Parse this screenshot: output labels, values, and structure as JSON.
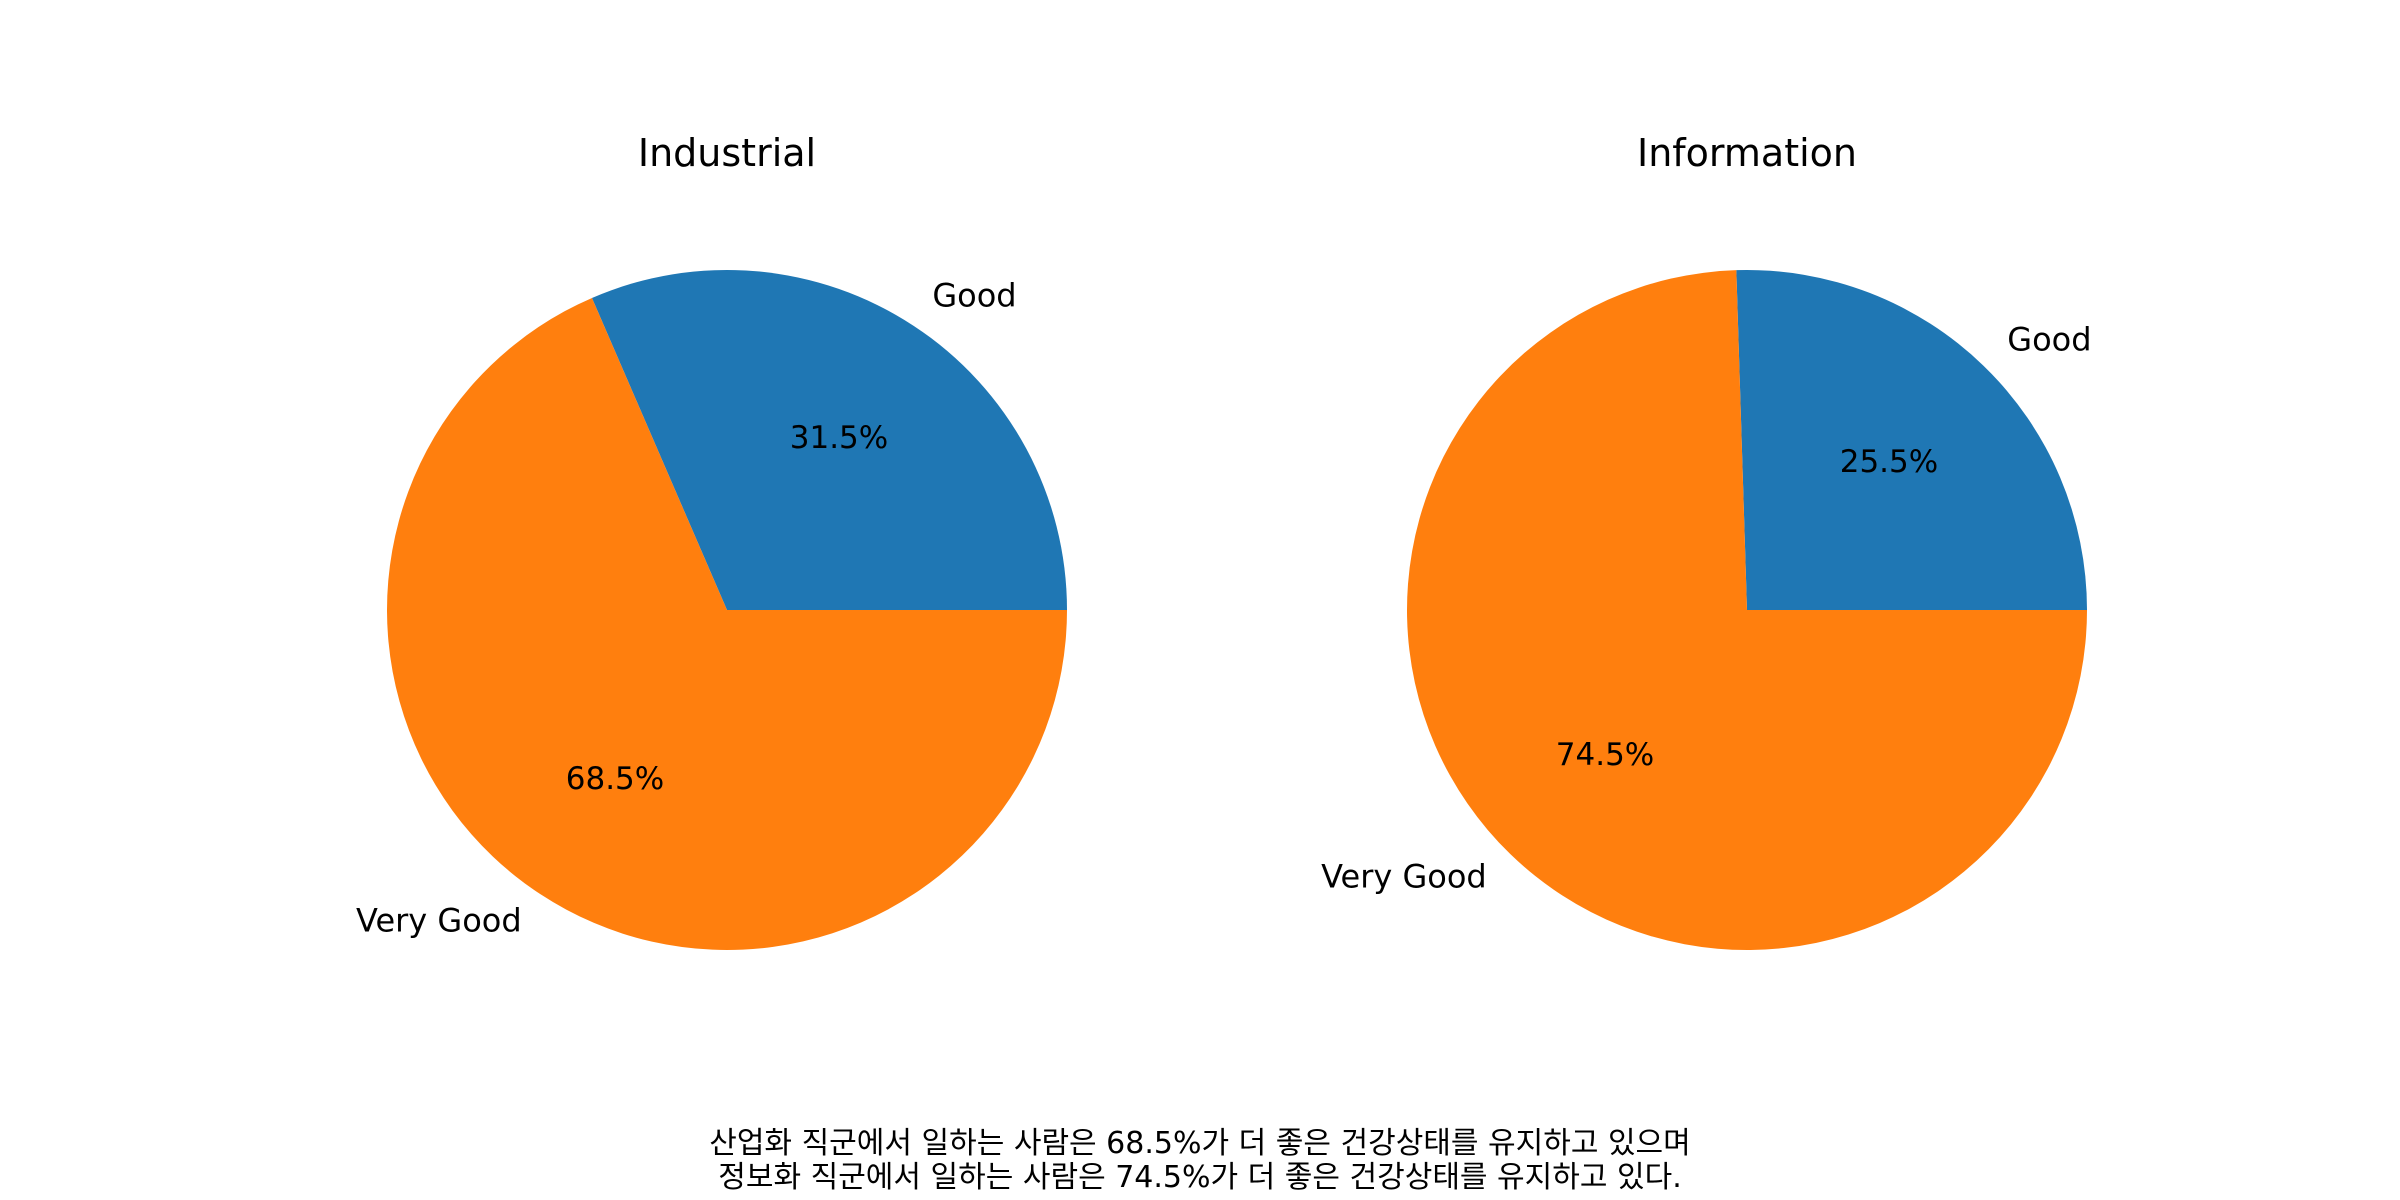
{
  "chart_data": [
    {
      "type": "pie",
      "title": "Industrial",
      "categories": [
        "Good",
        "Very Good"
      ],
      "values": [
        31.5,
        68.5
      ],
      "value_labels": [
        "31.5%",
        "68.5%"
      ],
      "colors": [
        "#1f77b4",
        "#ff7f0e"
      ],
      "start_angle_deg": 0,
      "direction": "counterclockwise"
    },
    {
      "type": "pie",
      "title": "Information",
      "categories": [
        "Good",
        "Very Good"
      ],
      "values": [
        25.5,
        74.5
      ],
      "value_labels": [
        "25.5%",
        "74.5%"
      ],
      "colors": [
        "#1f77b4",
        "#ff7f0e"
      ],
      "start_angle_deg": 0,
      "direction": "counterclockwise"
    }
  ],
  "caption": {
    "line1": "산업화 직군에서 일하는 사람은 68.5%가 더 좋은 건강상태를 유지하고 있으며",
    "line2": "정보화 직군에서 일하는 사람은 74.5%가 더 좋은 건강상태를 유지하고 있다."
  }
}
